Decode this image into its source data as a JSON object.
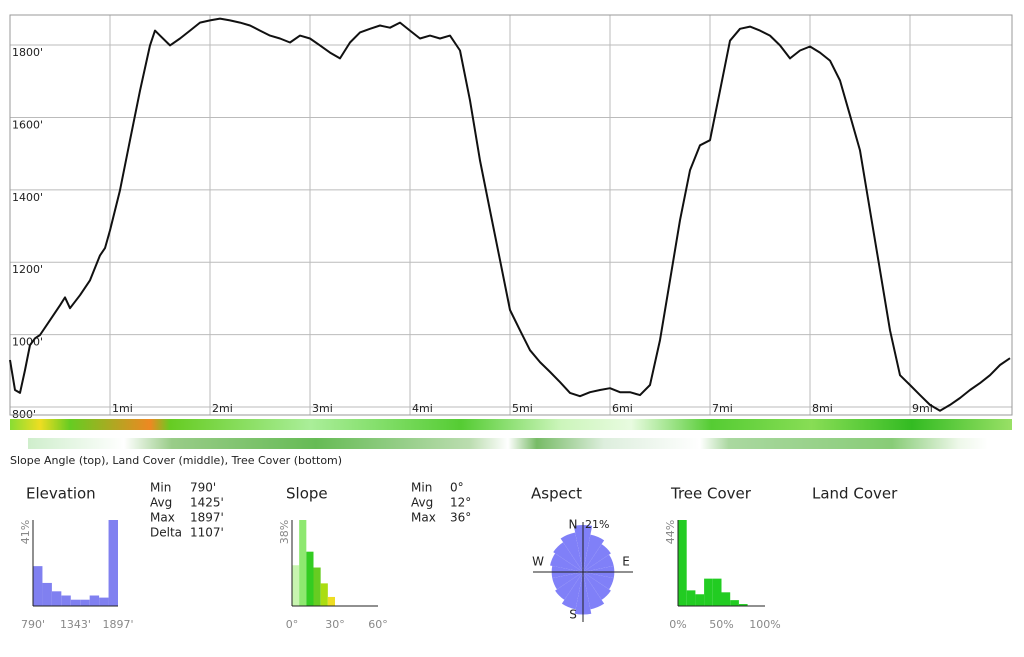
{
  "caption": "Slope Angle (top), Land Cover (middle), Tree Cover (bottom)",
  "chart_data": [
    {
      "type": "line",
      "color": "#111111",
      "grid": true,
      "xlim": [
        0,
        10.02
      ],
      "ylim": [
        778,
        1883
      ],
      "xticks": [
        {
          "value": 1,
          "label": "1mi"
        },
        {
          "value": 2,
          "label": "2mi"
        },
        {
          "value": 3,
          "label": "3mi"
        },
        {
          "value": 4,
          "label": "4mi"
        },
        {
          "value": 5,
          "label": "5mi"
        },
        {
          "value": 6,
          "label": "6mi"
        },
        {
          "value": 7,
          "label": "7mi"
        },
        {
          "value": 8,
          "label": "8mi"
        },
        {
          "value": 9,
          "label": "9mi"
        }
      ],
      "yticks": [
        {
          "value": 800,
          "label": "800'"
        },
        {
          "value": 1000,
          "label": "1000'"
        },
        {
          "value": 1200,
          "label": "1200'"
        },
        {
          "value": 1400,
          "label": "1400'"
        },
        {
          "value": 1600,
          "label": "1600'"
        },
        {
          "value": 1800,
          "label": "1800'"
        }
      ],
      "x": [
        0,
        0.05,
        0.1,
        0.15,
        0.2,
        0.25,
        0.3,
        0.4,
        0.5,
        0.55,
        0.6,
        0.7,
        0.8,
        0.9,
        0.95,
        1.0,
        1.1,
        1.2,
        1.3,
        1.4,
        1.45,
        1.5,
        1.6,
        1.7,
        1.8,
        1.9,
        2.0,
        2.1,
        2.2,
        2.3,
        2.4,
        2.5,
        2.6,
        2.7,
        2.8,
        2.9,
        3.0,
        3.1,
        3.2,
        3.3,
        3.4,
        3.5,
        3.6,
        3.7,
        3.8,
        3.9,
        4.0,
        4.1,
        4.2,
        4.3,
        4.4,
        4.5,
        4.6,
        4.7,
        4.8,
        4.9,
        5.0,
        5.1,
        5.2,
        5.3,
        5.4,
        5.5,
        5.6,
        5.7,
        5.8,
        5.9,
        6.0,
        6.1,
        6.2,
        6.3,
        6.4,
        6.5,
        6.6,
        6.7,
        6.8,
        6.9,
        7.0,
        7.1,
        7.2,
        7.3,
        7.4,
        7.5,
        7.6,
        7.7,
        7.8,
        7.9,
        8.0,
        8.1,
        8.2,
        8.3,
        8.4,
        8.5,
        8.6,
        8.7,
        8.8,
        8.9,
        9.0,
        9.1,
        9.2,
        9.3,
        9.4,
        9.5,
        9.6,
        9.7,
        9.8,
        9.9,
        10.0
      ],
      "values": [
        930,
        847,
        839,
        902,
        971,
        990,
        999,
        1040,
        1081,
        1103,
        1073,
        1109,
        1150,
        1219,
        1239,
        1288,
        1399,
        1537,
        1674,
        1799,
        1840,
        1826,
        1799,
        1818,
        1840,
        1862,
        1868,
        1873,
        1868,
        1862,
        1854,
        1840,
        1826,
        1818,
        1807,
        1826,
        1818,
        1799,
        1779,
        1763,
        1807,
        1835,
        1845,
        1854,
        1848,
        1862,
        1840,
        1818,
        1826,
        1818,
        1826,
        1785,
        1647,
        1481,
        1343,
        1206,
        1068,
        1012,
        957,
        924,
        897,
        869,
        839,
        830,
        841,
        847,
        852,
        841,
        841,
        833,
        861,
        985,
        1150,
        1316,
        1454,
        1523,
        1537,
        1674,
        1812,
        1845,
        1851,
        1840,
        1826,
        1799,
        1763,
        1785,
        1796,
        1779,
        1757,
        1702,
        1606,
        1509,
        1343,
        1178,
        1012,
        888,
        861,
        833,
        806,
        790,
        806,
        825,
        847,
        866,
        888,
        916,
        935
      ]
    },
    {
      "type": "histogram",
      "title": "Elevation",
      "color": "#8080f0",
      "ymax": {
        "value": 41,
        "label": "41%"
      },
      "xlim": [
        790,
        1897
      ],
      "xticks": [
        {
          "value": 790,
          "label": "790'"
        },
        {
          "value": 1343,
          "label": "1343'"
        },
        {
          "value": 1897,
          "label": "1897'"
        }
      ],
      "bins": [
        790,
        913,
        1036,
        1159,
        1282,
        1405,
        1528,
        1651,
        1774,
        1897
      ],
      "values": [
        19,
        11,
        7,
        5,
        3,
        3,
        5,
        4,
        41
      ],
      "stats": [
        {
          "label": "Min",
          "value": "790'"
        },
        {
          "label": "Avg",
          "value": "1425'"
        },
        {
          "label": "Max",
          "value": "1897'"
        },
        {
          "label": "Delta",
          "value": "1107'"
        }
      ]
    },
    {
      "type": "histogram",
      "title": "Slope",
      "colors": [
        "#c8f5b0",
        "#8ee870",
        "#33cc22",
        "#66cc22",
        "#aadd11",
        "#eedd22"
      ],
      "ymax": {
        "value": 38,
        "label": "38%"
      },
      "xlim": [
        0,
        60
      ],
      "xticks": [
        {
          "value": 0,
          "label": "0°"
        },
        {
          "value": 30,
          "label": "30°"
        },
        {
          "value": 60,
          "label": "60°"
        }
      ],
      "bins": [
        0,
        5,
        10,
        15,
        20,
        25,
        30
      ],
      "values": [
        18,
        38,
        24,
        17,
        10,
        4
      ],
      "stats": [
        {
          "label": "Min",
          "value": "0°"
        },
        {
          "label": "Avg",
          "value": "12°"
        },
        {
          "label": "Max",
          "value": "36°"
        }
      ]
    },
    {
      "type": "polar",
      "title": "Aspect",
      "color": "#8080f8",
      "rmax": {
        "value": 21,
        "label": "21%"
      },
      "directions": [
        "N",
        "E",
        "S",
        "W"
      ],
      "values": [
        21,
        17,
        15,
        14,
        14,
        14,
        15,
        17,
        19,
        17,
        15,
        14,
        14,
        15,
        16,
        18
      ]
    },
    {
      "type": "histogram",
      "title": "Tree Cover",
      "color": "#22cc22",
      "ymax": {
        "value": 44,
        "label": "44%"
      },
      "xlim": [
        0,
        100
      ],
      "xticks": [
        {
          "value": 0,
          "label": "0%"
        },
        {
          "value": 50,
          "label": "50%"
        },
        {
          "value": 100,
          "label": "100%"
        }
      ],
      "bins": [
        0,
        10,
        20,
        30,
        40,
        50,
        60,
        70,
        80,
        90,
        100
      ],
      "values": [
        44,
        8,
        6,
        14,
        14,
        7,
        3,
        1,
        0,
        0
      ]
    },
    {
      "type": "empty",
      "title": "Land Cover"
    }
  ]
}
